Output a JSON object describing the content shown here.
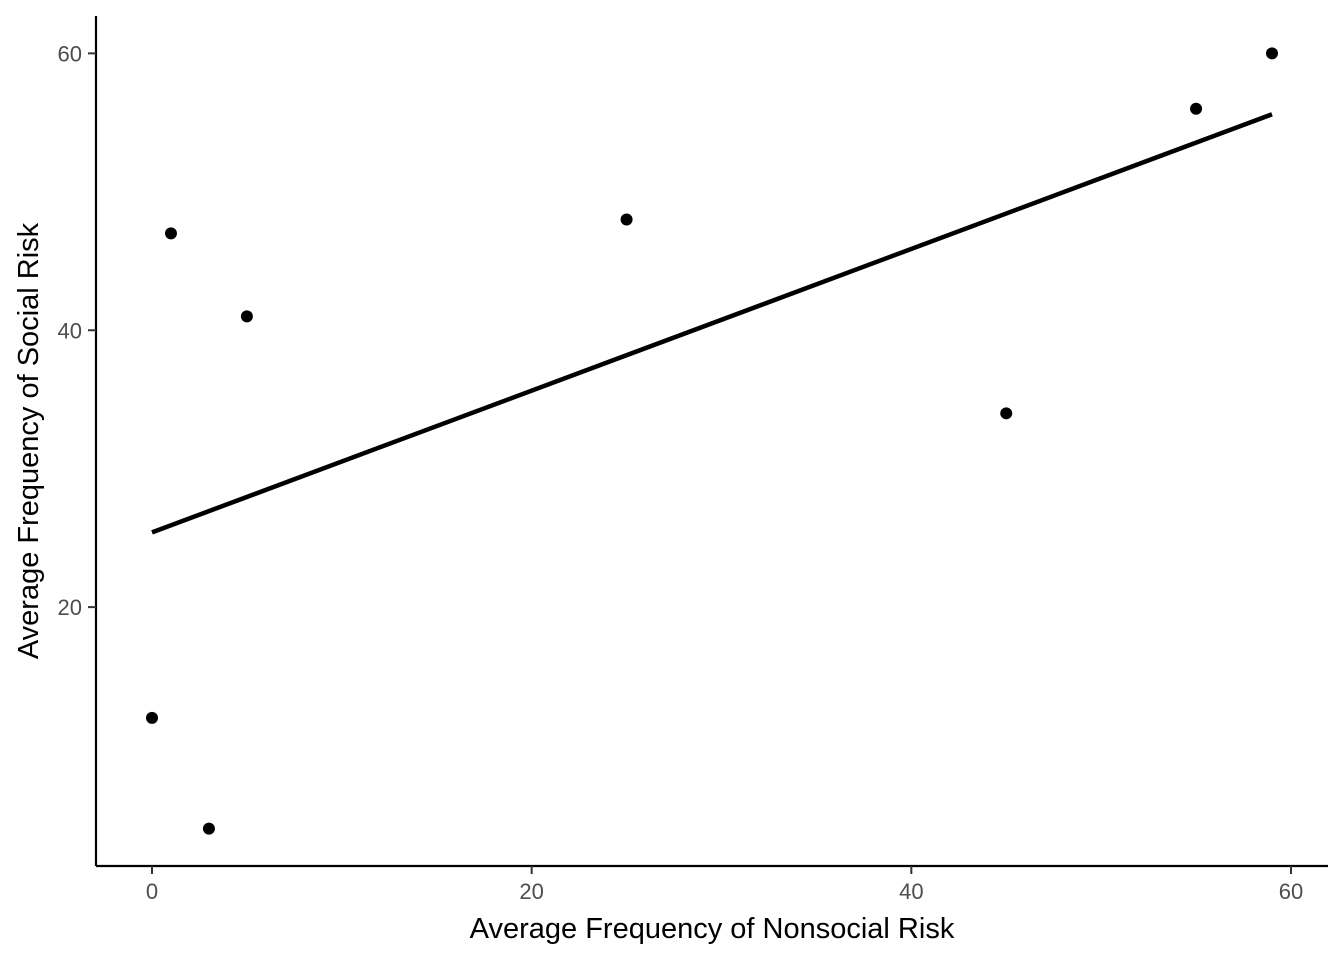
{
  "chart_data": {
    "type": "scatter",
    "xlabel": "Average Frequency of Nonsocial Risk",
    "ylabel": "Average Frequency of Social Risk",
    "xlim": [
      -2.95,
      61.95
    ],
    "ylim": [
      1.3,
      62.7
    ],
    "x_ticks": [
      0,
      20,
      40,
      60
    ],
    "y_ticks": [
      20,
      40,
      60
    ],
    "x_tick_labels": [
      "0",
      "20",
      "40",
      "60"
    ],
    "y_tick_labels": [
      "20",
      "40",
      "60"
    ],
    "grid": false,
    "legend": "none",
    "points": [
      {
        "x": 0,
        "y": 12
      },
      {
        "x": 1,
        "y": 47
      },
      {
        "x": 3,
        "y": 4
      },
      {
        "x": 5,
        "y": 41
      },
      {
        "x": 25,
        "y": 48
      },
      {
        "x": 45,
        "y": 34
      },
      {
        "x": 55,
        "y": 56
      },
      {
        "x": 59,
        "y": 60
      }
    ],
    "trend_line": {
      "x": [
        0,
        59
      ],
      "y": [
        25.4,
        55.6
      ]
    },
    "colors": {
      "points": "#000000",
      "line": "#000000"
    }
  }
}
